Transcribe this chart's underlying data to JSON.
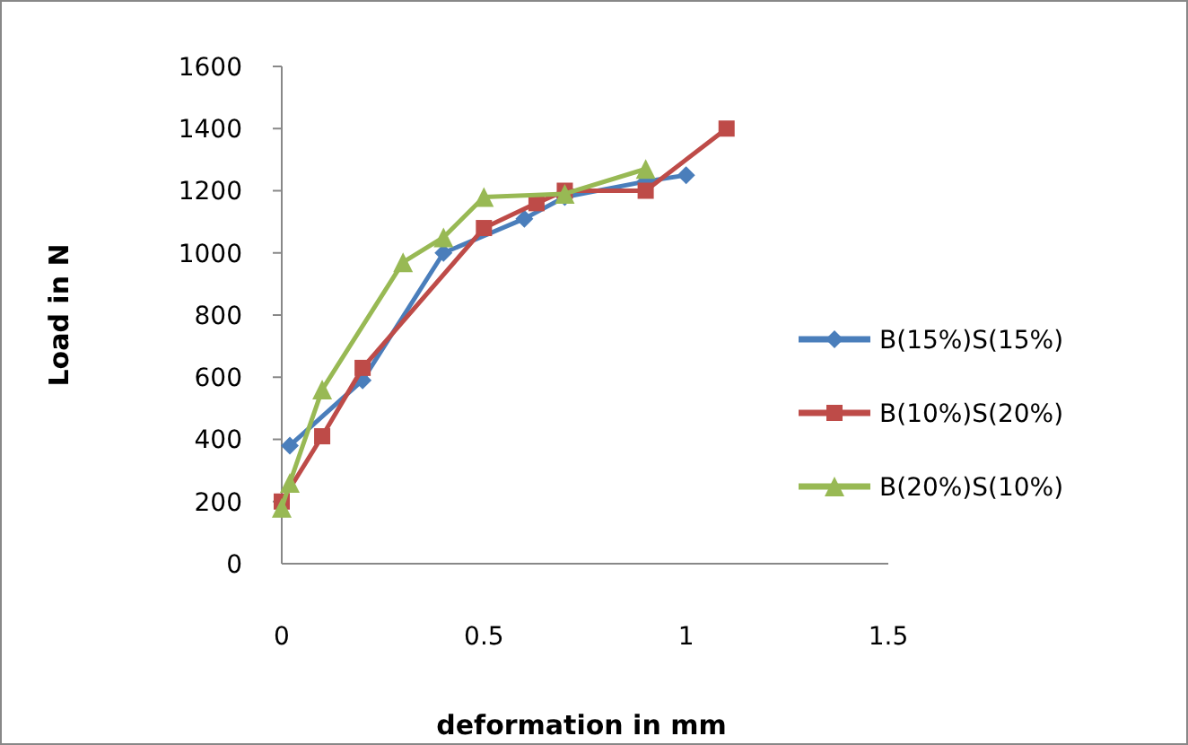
{
  "chart_data": {
    "type": "line",
    "xlabel": "deformation in mm",
    "ylabel": "Load in N",
    "xlim": [
      0,
      1.5
    ],
    "xticks": [
      0,
      0.5,
      1,
      1.5
    ],
    "ylim": [
      0,
      1600
    ],
    "yticks": [
      0,
      200,
      400,
      600,
      800,
      1000,
      1200,
      1400,
      1600
    ],
    "grid": false,
    "legend": "right",
    "series": [
      {
        "name": "B(15%)S(15%)",
        "color": "#4a7ebb",
        "marker": "diamond",
        "x": [
          0.02,
          0.2,
          0.4,
          0.6,
          0.7,
          0.9,
          1.0
        ],
        "values": [
          380,
          590,
          1000,
          1110,
          1180,
          1230,
          1250
        ]
      },
      {
        "name": "B(10%)S(20%)",
        "color": "#be4b48",
        "marker": "square",
        "x": [
          0,
          0.1,
          0.2,
          0.5,
          0.63,
          0.7,
          0.9,
          1.1
        ],
        "values": [
          200,
          410,
          630,
          1080,
          1160,
          1200,
          1200,
          1400
        ]
      },
      {
        "name": "B(20%)S(10%)",
        "color": "#98b954",
        "marker": "triangle",
        "x": [
          0,
          0.02,
          0.1,
          0.3,
          0.4,
          0.5,
          0.7,
          0.9
        ],
        "values": [
          180,
          260,
          560,
          970,
          1050,
          1180,
          1190,
          1270
        ]
      }
    ]
  }
}
